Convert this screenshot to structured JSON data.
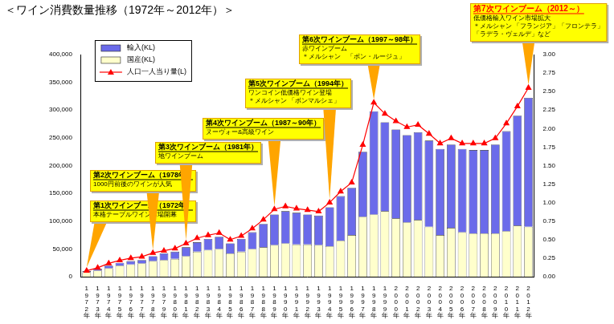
{
  "chart_data": {
    "type": "bar",
    "title": "＜ワイン消費数量推移（1972年～2012年）＞",
    "stacked": true,
    "grid": false,
    "legend": "upper left",
    "categories": [
      "1972年",
      "1973年",
      "1974年",
      "1975年",
      "1976年",
      "1977年",
      "1978年",
      "1979年",
      "1980年",
      "1981年",
      "1982年",
      "1983年",
      "1984年",
      "1985年",
      "1986年",
      "1987年",
      "1988年",
      "1989年",
      "1990年",
      "1991年",
      "1992年",
      "1993年",
      "1994年",
      "1995年",
      "1996年",
      "1997年",
      "1998年",
      "1999年",
      "2000年",
      "2001年",
      "2002年",
      "2003年",
      "2004年",
      "2005年",
      "2006年",
      "2007年",
      "2008年",
      "2009年",
      "2010年",
      "2011年",
      "2012年"
    ],
    "series": [
      {
        "name": "国産(KL)",
        "type": "bar",
        "color": "#ffffcc",
        "values": [
          8000,
          11000,
          15000,
          20000,
          22000,
          24000,
          28000,
          30000,
          32000,
          37000,
          45000,
          48000,
          50000,
          42000,
          45000,
          50000,
          53000,
          57000,
          60000,
          58000,
          58000,
          57000,
          55000,
          65000,
          75000,
          108000,
          112000,
          118000,
          105000,
          98000,
          102000,
          90000,
          75000,
          88000,
          80000,
          78000,
          78000,
          78000,
          82000,
          92000,
          90000
        ]
      },
      {
        "name": "輸入(KL)",
        "type": "bar",
        "color": "#6b6bea",
        "values": [
          2000,
          3000,
          5000,
          5000,
          6000,
          6000,
          9000,
          12000,
          13000,
          16000,
          17000,
          20000,
          22000,
          18000,
          23000,
          30000,
          42000,
          55000,
          58000,
          57000,
          54000,
          53000,
          70000,
          80000,
          85000,
          117000,
          186000,
          160000,
          160000,
          157000,
          158000,
          155000,
          155000,
          150000,
          150000,
          150000,
          150000,
          160000,
          180000,
          198000,
          232000
        ]
      },
      {
        "name": "人口一人当り量(L)",
        "type": "line",
        "axis": "y2",
        "color": "#ff0000",
        "marker": "triangle",
        "line_style": "solid",
        "values": [
          0.08,
          0.12,
          0.18,
          0.22,
          0.25,
          0.27,
          0.32,
          0.35,
          0.38,
          0.45,
          0.52,
          0.56,
          0.59,
          0.5,
          0.55,
          0.65,
          0.77,
          0.91,
          0.95,
          0.92,
          0.9,
          0.88,
          1.0,
          1.15,
          1.27,
          1.78,
          2.35,
          2.2,
          2.1,
          2.02,
          2.05,
          1.93,
          1.8,
          1.87,
          1.8,
          1.8,
          1.8,
          1.87,
          2.07,
          2.3,
          2.55
        ]
      }
    ],
    "ylim": [
      0,
      400000
    ],
    "yticks": [
      0,
      {
        "value": 50000,
        "label": "50,000"
      },
      {
        "value": 100000,
        "label": "100,000"
      },
      {
        "value": 150000,
        "label": "150,000"
      },
      {
        "value": 200000,
        "label": "200,000"
      },
      {
        "value": 250000,
        "label": "250,000"
      },
      {
        "value": 300000,
        "label": "300,000"
      },
      {
        "value": 350000,
        "label": "350,000"
      },
      {
        "value": 400000,
        "label": "400,000"
      }
    ],
    "y2lim": [
      0,
      3
    ],
    "y2ticks": [
      {
        "value": 0,
        "label": "0.00"
      },
      {
        "value": 0.25,
        "label": "0.25"
      },
      {
        "value": 0.5,
        "label": "0.50"
      },
      {
        "value": 0.75,
        "label": "0.75"
      },
      {
        "value": 1,
        "label": "1.00"
      },
      {
        "value": 1.25,
        "label": "1.25"
      },
      {
        "value": 1.5,
        "label": "1.50"
      },
      {
        "value": 1.75,
        "label": "1.75"
      },
      {
        "value": 2,
        "label": "2.00"
      },
      {
        "value": 2.25,
        "label": "2.25"
      },
      {
        "value": 2.5,
        "label": "2.50"
      },
      {
        "value": 2.75,
        "label": "2.75"
      },
      {
        "value": 3,
        "label": "3.00"
      }
    ],
    "annotations": [
      {
        "category": "1972年",
        "title": "第1次ワインブーム（1972年）",
        "text": [
          "本格テーブルワイン市場開幕"
        ]
      },
      {
        "category": "1978年",
        "title": "第2次ワインブーム（1978年）",
        "text": [
          "1000円前後のワインが人気"
        ]
      },
      {
        "category": "1981年",
        "title": "第3次ワインブーム（1981年）",
        "text": [
          "地ワインブーム"
        ]
      },
      {
        "category": "1989年",
        "title": "第4次ワインブーム（1987～90年）",
        "text": [
          "ヌーヴォー&高級ワイン"
        ]
      },
      {
        "category": "1994年",
        "title": "第5次ワインブーム（1994年）",
        "text": [
          "ワンコイン低価格ワイン登場",
          "＊メルシャン 「ボンマルシェ」"
        ]
      },
      {
        "category": "1998年",
        "title": "第6次ワインブーム（1997～98年）",
        "text": [
          "赤ワインブーム",
          "＊メルシャン　「ボン・ルージュ」"
        ]
      },
      {
        "category": "2012年",
        "title": "第7次ワインブーム（2012～）",
        "text": [
          "低価格輸入ワイン市場拡大",
          "＊メルシャン 「フランジア」「フロンテラ」",
          "「ラデラ・ヴェルデ」など"
        ]
      }
    ]
  }
}
